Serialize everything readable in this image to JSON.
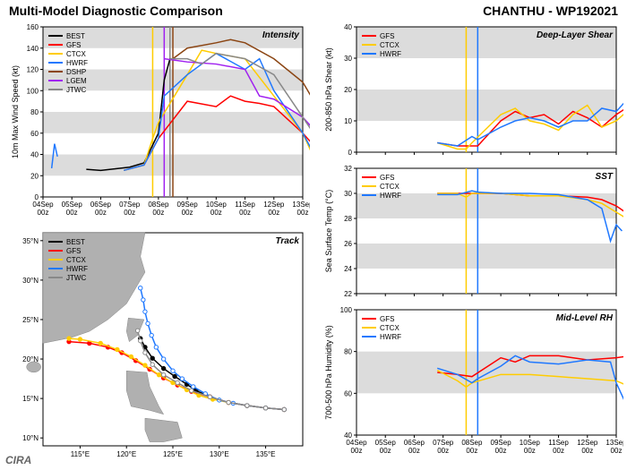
{
  "main_title": "Multi-Model Diagnostic Comparison",
  "storm_id": "CHANTHU - WP192021",
  "cira_label": "CIRA",
  "x_dates": [
    "04Sep\n00z",
    "05Sep\n00z",
    "06Sep\n00z",
    "07Sep\n00z",
    "08Sep\n00z",
    "09Sep\n00z",
    "10Sep\n00z",
    "11Sep\n00z",
    "12Sep\n00z",
    "13Sep\n00z"
  ],
  "colors": {
    "BEST": "#000000",
    "GFS": "#ff0000",
    "CTCX": "#ffcc00",
    "HWRF": "#1f78ff",
    "DSHP": "#8b4513",
    "LGEM": "#a020f0",
    "JTWC": "#888888",
    "band": "#dcdcdc",
    "grid": "#f0f0f0",
    "land": "#b0b0b0",
    "sea": "#ffffff",
    "bg": "#ffffff"
  },
  "intensity": {
    "title": "Intensity",
    "ylabel": "10m Max Wind Speed (kt)",
    "ylim": [
      0,
      160
    ],
    "ytick_step": 20,
    "legend": [
      "BEST",
      "GFS",
      "CTCX",
      "HWRF",
      "DSHP",
      "LGEM",
      "JTWC"
    ],
    "vlines": [
      {
        "x": 3.8,
        "color": "#ffcc00"
      },
      {
        "x": 4.2,
        "color": "#a020f0"
      },
      {
        "x": 4.4,
        "color": "#888888"
      },
      {
        "x": 4.5,
        "color": "#8b4513"
      }
    ],
    "series": {
      "BEST": {
        "x": [
          1.5,
          2,
          3,
          3.5,
          4,
          4.2,
          4.4
        ],
        "y": [
          26,
          25,
          28,
          32,
          60,
          110,
          130
        ]
      },
      "GFS": {
        "x": [
          2.8,
          3.5,
          4,
          5,
          6,
          6.5,
          7,
          7.5,
          8,
          9,
          9.5
        ],
        "y": [
          25,
          30,
          55,
          90,
          85,
          95,
          90,
          88,
          85,
          60,
          45
        ]
      },
      "CTCX": {
        "x": [
          2.8,
          3.5,
          3.8,
          4,
          5,
          5.5,
          6,
          7,
          8,
          9,
          9.5
        ],
        "y": [
          25,
          30,
          55,
          70,
          115,
          138,
          135,
          130,
          95,
          60,
          30
        ]
      },
      "HWRF": {
        "x": [
          2.8,
          3.5,
          4,
          4.2,
          5,
          5.5,
          6,
          7,
          7.5,
          8,
          9,
          9.5
        ],
        "y": [
          25,
          30,
          55,
          95,
          115,
          125,
          135,
          120,
          130,
          100,
          60,
          35
        ]
      },
      "DSHP": {
        "x": [
          4.5,
          5,
          6,
          6.5,
          7,
          8,
          9,
          9.5
        ],
        "y": [
          130,
          140,
          145,
          148,
          145,
          130,
          108,
          85
        ]
      },
      "LGEM": {
        "x": [
          4.2,
          5,
          6,
          7,
          7.5,
          8,
          9,
          9.5
        ],
        "y": [
          130,
          127,
          125,
          120,
          95,
          92,
          75,
          60
        ]
      },
      "JTWC": {
        "x": [
          4.4,
          5,
          5.5,
          6,
          7,
          8,
          9,
          9.5
        ],
        "y": [
          130,
          130,
          125,
          135,
          130,
          115,
          75,
          55
        ]
      }
    },
    "hwrf_early": {
      "x": [
        0.3,
        0.4,
        0.5
      ],
      "y": [
        27,
        50,
        38
      ]
    }
  },
  "track": {
    "title": "Track",
    "legend": [
      "BEST",
      "GFS",
      "CTCX",
      "HWRF",
      "JTWC"
    ],
    "lonlim": [
      111,
      139
    ],
    "latlim": [
      9,
      36
    ],
    "lon_ticks": [
      115,
      120,
      125,
      130,
      135
    ],
    "lat_ticks": [
      10,
      15,
      20,
      25,
      30,
      35
    ],
    "series": {
      "BEST": [
        [
          137,
          13.6
        ],
        [
          135,
          13.8
        ],
        [
          133,
          14.1
        ],
        [
          131,
          14.5
        ],
        [
          129,
          15.2
        ],
        [
          127.5,
          16
        ],
        [
          126.5,
          16.8
        ],
        [
          125.2,
          17.8
        ],
        [
          124,
          18.8
        ],
        [
          122.8,
          20.1
        ],
        [
          122,
          21.5
        ],
        [
          121.5,
          22.6
        ]
      ],
      "GFS": [
        [
          137,
          13.6
        ],
        [
          135,
          13.8
        ],
        [
          133,
          14.1
        ],
        [
          131,
          14.5
        ],
        [
          129,
          15.2
        ],
        [
          127,
          15.9
        ],
        [
          125.5,
          16.7
        ],
        [
          124,
          17.6
        ],
        [
          122.5,
          18.7
        ],
        [
          121,
          19.8
        ],
        [
          119.5,
          20.8
        ],
        [
          118,
          21.5
        ],
        [
          116,
          22
        ],
        [
          113.8,
          22.2
        ]
      ],
      "CTCX": [
        [
          137,
          13.6
        ],
        [
          135,
          13.8
        ],
        [
          133,
          14.1
        ],
        [
          131,
          14.5
        ],
        [
          129.3,
          14.9
        ],
        [
          127.8,
          15.4
        ],
        [
          126.5,
          16.1
        ],
        [
          125,
          17
        ],
        [
          123.5,
          18
        ],
        [
          122,
          19.2
        ],
        [
          120.5,
          20.3
        ],
        [
          119,
          21.2
        ],
        [
          117.2,
          22
        ],
        [
          115,
          22.5
        ],
        [
          113.8,
          22.6
        ]
      ],
      "HWRF": [
        [
          137,
          13.6
        ],
        [
          135,
          13.8
        ],
        [
          133,
          14.1
        ],
        [
          131.5,
          14.4
        ],
        [
          130,
          14.8
        ],
        [
          128.5,
          15.6
        ],
        [
          127.2,
          16.5
        ],
        [
          126,
          17.5
        ],
        [
          125,
          18.5
        ],
        [
          124,
          20
        ],
        [
          123.2,
          21.5
        ],
        [
          122.7,
          23
        ],
        [
          122.3,
          24.5
        ],
        [
          122,
          26
        ],
        [
          121.8,
          27.5
        ],
        [
          121.5,
          29
        ]
      ],
      "JTWC": [
        [
          137,
          13.6
        ],
        [
          135,
          13.8
        ],
        [
          133,
          14.1
        ],
        [
          131,
          14.5
        ],
        [
          129,
          15.2
        ],
        [
          127,
          16
        ],
        [
          125.5,
          17
        ],
        [
          124,
          18
        ],
        [
          122.8,
          19.3
        ],
        [
          122,
          20.8
        ],
        [
          121.5,
          22.3
        ],
        [
          121.2,
          23.6
        ]
      ]
    }
  },
  "shear": {
    "title": "Deep-Layer Shear",
    "ylabel": "200-850 hPa Shear (kt)",
    "ylim": [
      0,
      40
    ],
    "ytick_step": 10,
    "legend": [
      "GFS",
      "CTCX",
      "HWRF"
    ],
    "vlines": [
      {
        "x": 3.8,
        "color": "#ffcc00"
      },
      {
        "x": 4.2,
        "color": "#1f78ff"
      }
    ],
    "series": {
      "GFS": {
        "x": [
          2.8,
          3.5,
          4,
          4.2,
          5,
          5.5,
          6,
          6.5,
          7,
          7.5,
          8,
          8.5,
          9,
          9.5
        ],
        "y": [
          3,
          2,
          2,
          2,
          10,
          13,
          11,
          12,
          9,
          13,
          11,
          8,
          12,
          15
        ]
      },
      "CTCX": {
        "x": [
          2.8,
          3.5,
          3.8,
          4,
          5,
          5.5,
          6,
          6.5,
          7,
          7.5,
          8,
          8.5,
          9,
          9.5
        ],
        "y": [
          3,
          1,
          1,
          3,
          12,
          14,
          10,
          9,
          7,
          12,
          15,
          8,
          10,
          14
        ]
      },
      "HWRF": {
        "x": [
          2.8,
          3.5,
          4,
          4.2,
          5,
          5.5,
          6,
          6.5,
          7,
          7.5,
          8,
          8.5,
          9,
          9.5
        ],
        "y": [
          3,
          2,
          5,
          4,
          8,
          10,
          11,
          10,
          8,
          10,
          10,
          14,
          13,
          18
        ]
      }
    }
  },
  "sst": {
    "title": "SST",
    "ylabel": "Sea Surface Temp (°C)",
    "ylim": [
      22,
      32
    ],
    "ytick_step": 2,
    "legend": [
      "GFS",
      "CTCX",
      "HWRF"
    ],
    "vlines": [
      {
        "x": 3.8,
        "color": "#ffcc00"
      },
      {
        "x": 4.2,
        "color": "#1f78ff"
      }
    ],
    "series": {
      "GFS": {
        "x": [
          2.8,
          3.5,
          4,
          5,
          6,
          7,
          8,
          8.5,
          9,
          9.5
        ],
        "y": [
          30.0,
          30.0,
          30.0,
          30.0,
          29.8,
          29.8,
          29.7,
          29.5,
          29.0,
          28.2
        ]
      },
      "CTCX": {
        "x": [
          2.8,
          3.5,
          3.8,
          4,
          5,
          6,
          7,
          8,
          8.5,
          9,
          9.5
        ],
        "y": [
          30.0,
          30.0,
          29.7,
          30.0,
          30.0,
          29.8,
          29.8,
          29.5,
          29.2,
          28.5,
          27.8
        ]
      },
      "HWRF": {
        "x": [
          2.8,
          3.5,
          4,
          4.2,
          5,
          6,
          7,
          8,
          8.5,
          8.8,
          9,
          9.2
        ],
        "y": [
          29.9,
          29.9,
          30.2,
          30.1,
          30.0,
          30.0,
          29.9,
          29.5,
          28.8,
          26.2,
          27.5,
          27.0
        ]
      }
    }
  },
  "rh": {
    "title": "Mid-Level RH",
    "ylabel": "700-500 hPa Humidity (%)",
    "ylim": [
      40,
      100
    ],
    "ytick_step": 20,
    "legend": [
      "GFS",
      "CTCX",
      "HWRF"
    ],
    "vlines": [
      {
        "x": 3.8,
        "color": "#ffcc00"
      },
      {
        "x": 4.2,
        "color": "#1f78ff"
      }
    ],
    "series": {
      "GFS": {
        "x": [
          2.8,
          3.5,
          4,
          5,
          5.5,
          6,
          7,
          8,
          9,
          9.5
        ],
        "y": [
          70,
          69,
          68,
          77,
          75,
          78,
          78,
          76,
          77,
          78
        ]
      },
      "CTCX": {
        "x": [
          2.8,
          3.5,
          3.8,
          4,
          5,
          6,
          7,
          8,
          9,
          9.5
        ],
        "y": [
          71,
          66,
          63,
          65,
          69,
          69,
          68,
          67,
          66,
          63
        ]
      },
      "HWRF": {
        "x": [
          2.8,
          3.5,
          4,
          4.2,
          5,
          5.5,
          6,
          7,
          8,
          8.8,
          9,
          9.5
        ],
        "y": [
          72,
          69,
          65,
          67,
          73,
          78,
          75,
          74,
          76,
          75,
          65,
          50
        ]
      }
    }
  }
}
